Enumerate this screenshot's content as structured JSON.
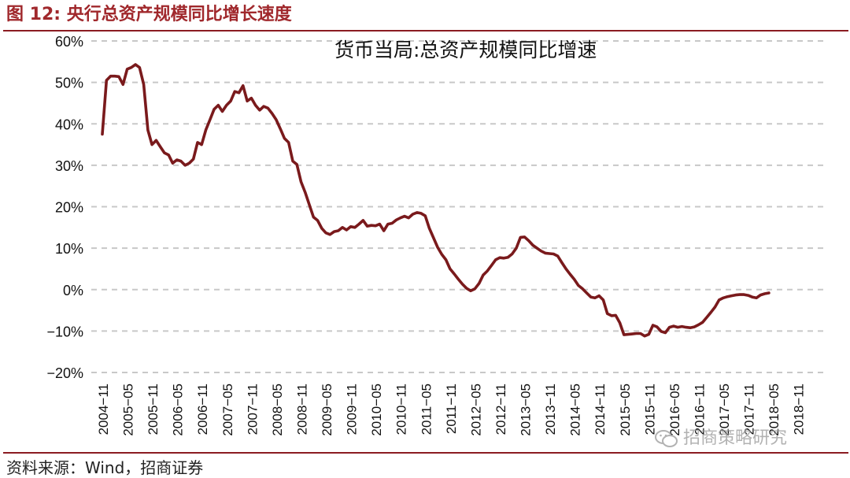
{
  "figure": {
    "title": "图 12:  央行总资产规模同比增长速度",
    "source": "资料来源：Wind，招商证券",
    "watermark": "招商策略研究",
    "colors": {
      "brand": "#a0282c",
      "line": "#7a1a1c",
      "grid": "#c8c8c8"
    }
  },
  "chart_data": {
    "type": "line",
    "title": "货币当局:总资产规模同比增速",
    "xlabel": "",
    "ylabel": "",
    "ylim": [
      -20,
      60
    ],
    "yticks": [
      -20,
      -10,
      0,
      10,
      20,
      30,
      40,
      50,
      60
    ],
    "ytick_labels": [
      "−20%",
      "−10%",
      "0%",
      "10%",
      "20%",
      "30%",
      "40%",
      "50%",
      "60%"
    ],
    "xticks": [
      "2004−11",
      "2005−05",
      "2005−11",
      "2006−05",
      "2006−11",
      "2007−05",
      "2007−11",
      "2008−05",
      "2008−11",
      "2009−05",
      "2009−11",
      "2010−05",
      "2010−11",
      "2011−05",
      "2011−11",
      "2012−05",
      "2012−11",
      "2013−05",
      "2013−11",
      "2014−05",
      "2014−11",
      "2015−05",
      "2015−11",
      "2016−05",
      "2016−11",
      "2017−05",
      "2017−11",
      "2018−05",
      "2018−11"
    ],
    "grid": "horizontal dashed",
    "legend": "none",
    "series": [
      {
        "name": "货币当局:总资产规模同比增速",
        "x_start": "2004-11",
        "frequency": "monthly",
        "values": [
          37.5,
          50.5,
          51.5,
          51.5,
          51.4,
          49.5,
          53.2,
          53.6,
          54.3,
          53.6,
          49.5,
          38.5,
          35.0,
          36.0,
          34.5,
          33.0,
          32.5,
          30.5,
          31.3,
          31.0,
          30.0,
          30.5,
          31.5,
          35.5,
          35.0,
          38.5,
          41.0,
          43.5,
          44.5,
          43.0,
          44.5,
          45.5,
          47.8,
          47.5,
          49.2,
          45.5,
          46.2,
          44.5,
          43.3,
          44.2,
          43.8,
          42.5,
          41.0,
          38.8,
          36.5,
          35.5,
          31.0,
          30.2,
          26.0,
          23.5,
          20.5,
          17.5,
          16.7,
          14.8,
          13.7,
          13.3,
          14.0,
          14.2,
          15.0,
          14.4,
          15.2,
          15.0,
          15.8,
          16.7,
          15.3,
          15.5,
          15.4,
          15.8,
          14.2,
          15.8,
          16.0,
          16.8,
          17.3,
          17.7,
          17.3,
          18.2,
          18.6,
          18.4,
          17.8,
          14.8,
          12.5,
          10.2,
          8.5,
          7.2,
          5.0,
          3.8,
          2.5,
          1.3,
          0.3,
          -0.3,
          0.2,
          1.5,
          3.5,
          4.5,
          5.8,
          7.2,
          7.7,
          7.6,
          7.8,
          8.6,
          10.0,
          12.6,
          12.7,
          11.8,
          10.7,
          10.0,
          9.3,
          8.8,
          8.7,
          8.6,
          8.1,
          6.5,
          5.0,
          3.7,
          2.5,
          1.0,
          0.2,
          -0.8,
          -1.8,
          -2.0,
          -1.5,
          -2.5,
          -5.8,
          -6.3,
          -6.2,
          -8.0,
          -10.9,
          -10.8,
          -10.7,
          -10.6,
          -10.6,
          -11.2,
          -10.8,
          -8.6,
          -9.0,
          -10.1,
          -10.4,
          -9.1,
          -8.8,
          -9.1,
          -8.9,
          -9.1,
          -9.2,
          -9.0,
          -8.5,
          -7.9,
          -6.7,
          -5.5,
          -4.2,
          -2.5,
          -2.0,
          -1.7,
          -1.5,
          -1.3,
          -1.2,
          -1.2,
          -1.4,
          -1.8,
          -2.0,
          -1.3,
          -1.0,
          -0.8
        ]
      }
    ]
  }
}
